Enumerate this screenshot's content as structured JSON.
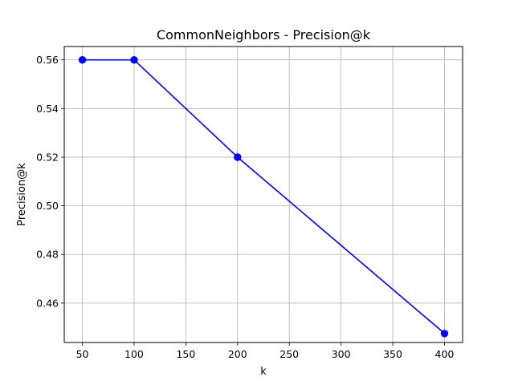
{
  "chart_data": {
    "type": "line",
    "title": "CommonNeighbors - Precision@k",
    "xlabel": "k",
    "ylabel": "Precision@k",
    "x": [
      50,
      100,
      200,
      400
    ],
    "series": [
      {
        "values": [
          0.56,
          0.56,
          0.52,
          0.4475
        ],
        "color": "#0000ff",
        "marker": "circle"
      }
    ],
    "xlim": [
      32.5,
      417.5
    ],
    "ylim": [
      0.4438,
      0.5655
    ],
    "xticks": [
      50,
      100,
      150,
      200,
      250,
      300,
      350,
      400
    ],
    "xtick_labels": [
      "50",
      "100",
      "150",
      "200",
      "250",
      "300",
      "350",
      "400"
    ],
    "yticks": [
      0.46,
      0.48,
      0.5,
      0.52,
      0.54,
      0.56
    ],
    "ytick_labels": [
      "0.46",
      "0.48",
      "0.50",
      "0.52",
      "0.54",
      "0.56"
    ],
    "grid": true,
    "legend": null
  }
}
